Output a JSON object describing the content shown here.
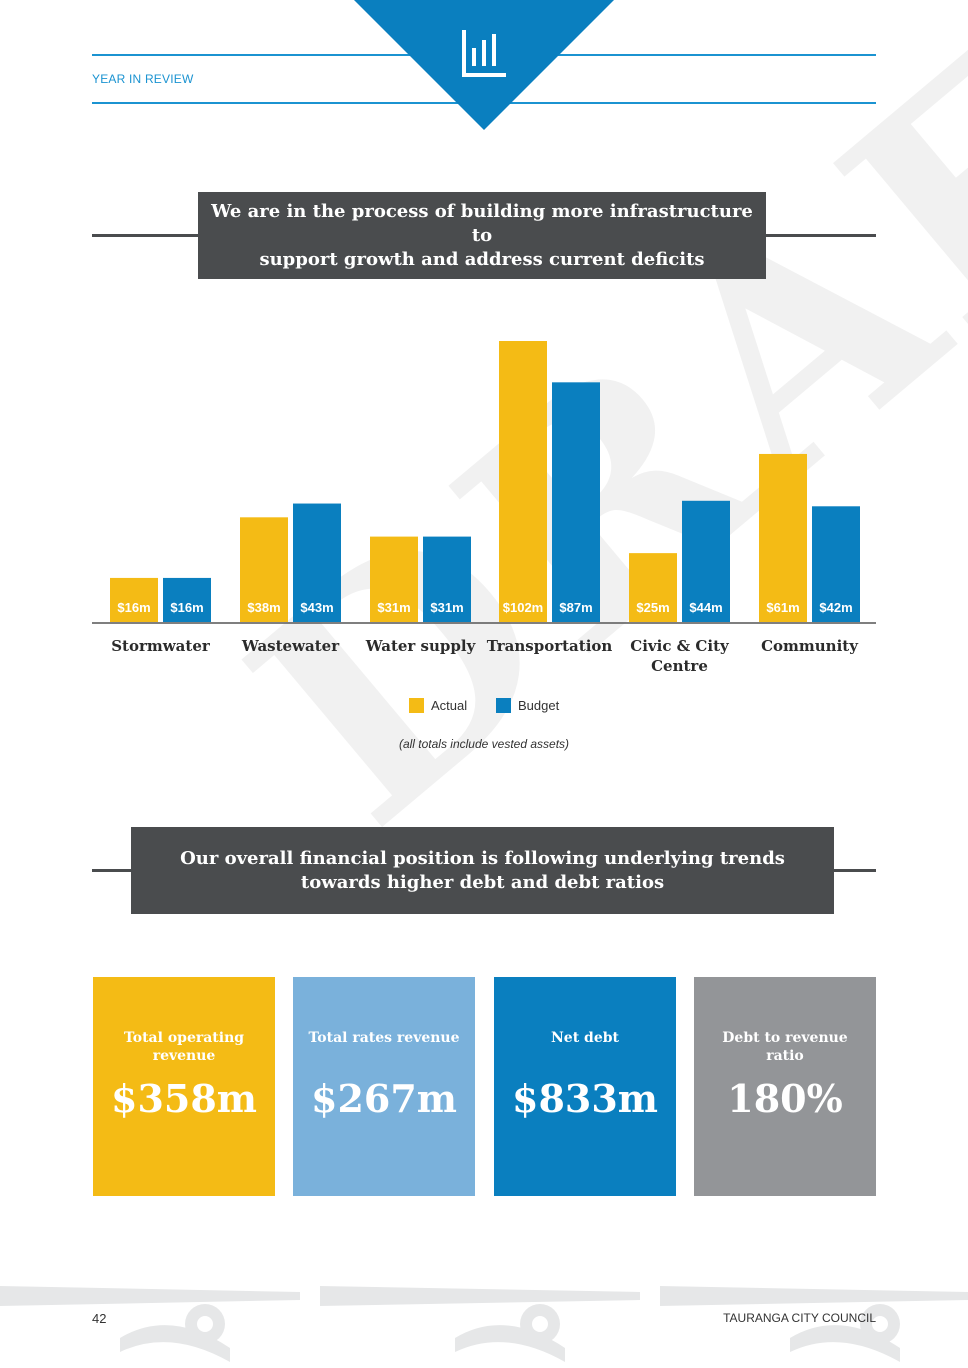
{
  "header": {
    "section_label": "YEAR IN REVIEW",
    "icon": "bar-chart-icon",
    "colors": {
      "accent": "#1b93d1",
      "dark_blue": "#0a7fbf"
    }
  },
  "banner1": {
    "line1": "We are in the process of building more infrastructure to",
    "line2": "support growth and address current deficits"
  },
  "chart_data": {
    "type": "bar",
    "categories": [
      "Stormwater",
      "Wastewater",
      "Water supply",
      "Transportation",
      "Civic & City Centre",
      "Community"
    ],
    "category_lines": [
      [
        "Stormwater"
      ],
      [
        "Wastewater"
      ],
      [
        "Water supply"
      ],
      [
        "Transportation"
      ],
      [
        "Civic & City",
        "Centre"
      ],
      [
        "Community"
      ]
    ],
    "series": [
      {
        "name": "Actual",
        "values": [
          16,
          38,
          31,
          102,
          25,
          61
        ],
        "labels": [
          "$16m",
          "$38m",
          "$31m",
          "$102m",
          "$25m",
          "$61m"
        ],
        "color": "#f4bb15"
      },
      {
        "name": "Budget",
        "values": [
          16,
          43,
          31,
          87,
          44,
          42
        ],
        "labels": [
          "$16m",
          "$43m",
          "$31m",
          "$87m",
          "$44m",
          "$42m"
        ],
        "color": "#0a7fbf"
      }
    ],
    "unit": "$m",
    "ylim": [
      0,
      102
    ],
    "grid": false,
    "legend": "bottom-center",
    "note": "(all totals include vested assets)"
  },
  "watermark": "DRAFT",
  "banner2": {
    "line1": "Our overall financial position is following underlying trends",
    "line2": "towards higher debt and debt ratios"
  },
  "cards": [
    {
      "title_lines": [
        "Total operating",
        "revenue"
      ],
      "value": "$358m",
      "color": "#f4bb15"
    },
    {
      "title_lines": [
        "Total rates revenue"
      ],
      "value": "$267m",
      "color": "#7ab1db"
    },
    {
      "title_lines": [
        "Net debt"
      ],
      "value": "$833m",
      "color": "#0a7fbf"
    },
    {
      "title_lines": [
        "Debt to revenue ratio"
      ],
      "value": "180%",
      "color": "#939598"
    }
  ],
  "footer": {
    "page_number": "42",
    "organisation": "TAURANGA CITY COUNCIL"
  }
}
